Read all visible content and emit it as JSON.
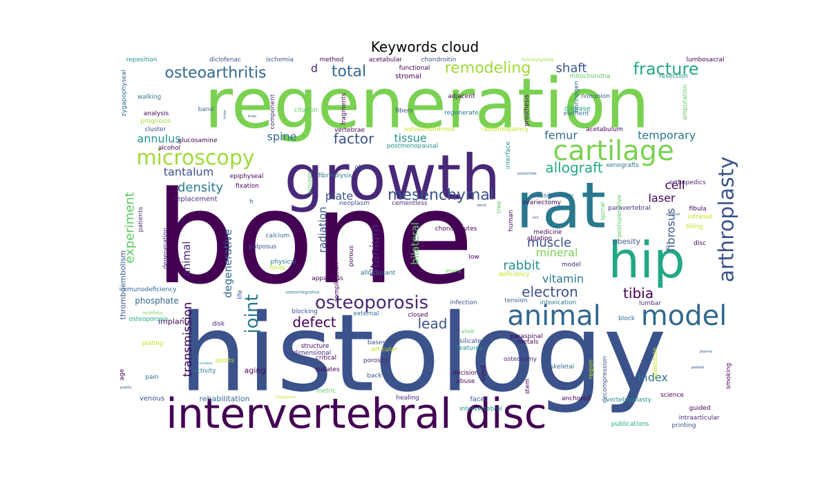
{
  "chart_data": {
    "type": "wordcloud",
    "title": "Keywords cloud",
    "background": "#ffffff",
    "colormap": "viridis",
    "words": [
      {
        "text": "bone",
        "weight": 100,
        "color": "#440154"
      },
      {
        "text": "histology",
        "weight": 95,
        "color": "#3b528b"
      },
      {
        "text": "regeneration",
        "weight": 90,
        "color": "#7ad151"
      },
      {
        "text": "growth",
        "weight": 80,
        "color": "#482878"
      },
      {
        "text": "rat",
        "weight": 72,
        "color": "#2a788e"
      },
      {
        "text": "hip",
        "weight": 60,
        "color": "#22a884"
      },
      {
        "text": "intervertebral disc",
        "weight": 58,
        "color": "#440154"
      },
      {
        "text": "cartilage",
        "weight": 35,
        "color": "#7ad151"
      },
      {
        "text": "animal",
        "weight": 36,
        "color": "#31688e"
      },
      {
        "text": "model",
        "weight": 36,
        "color": "#31688e"
      },
      {
        "text": "arthroplasty",
        "weight": 28,
        "color": "#3b528b"
      },
      {
        "text": "microscopy",
        "weight": 26,
        "color": "#a0da39"
      },
      {
        "text": "osteoporosis",
        "weight": 24,
        "color": "#482878"
      },
      {
        "text": "fracture",
        "weight": 22,
        "color": "#22a884"
      },
      {
        "text": "osteoarthritis",
        "weight": 20,
        "color": "#31688e"
      },
      {
        "text": "remodeling",
        "weight": 20,
        "color": "#a0da39"
      },
      {
        "text": "total",
        "weight": 20,
        "color": "#31688e"
      },
      {
        "text": "joint",
        "weight": 22,
        "color": "#2a788e"
      },
      {
        "text": "mesenchymal",
        "weight": 18,
        "color": "#3b528b"
      },
      {
        "text": "electron",
        "weight": 18,
        "color": "#3b528b"
      },
      {
        "text": "tibia",
        "weight": 18,
        "color": "#440154"
      },
      {
        "text": "defect",
        "weight": 18,
        "color": "#440154"
      },
      {
        "text": "lead",
        "weight": 18,
        "color": "#3b528b"
      },
      {
        "text": "factor",
        "weight": 16,
        "color": "#3b528b"
      },
      {
        "text": "experiment",
        "weight": 16,
        "color": "#5ec962"
      },
      {
        "text": "allograft",
        "weight": 16,
        "color": "#22a884"
      },
      {
        "text": "transmission",
        "weight": 16,
        "color": "#440154"
      },
      {
        "text": "titanium",
        "weight": 16,
        "color": "#482878"
      },
      {
        "text": "fibrosus",
        "weight": 16,
        "color": "#3b528b"
      },
      {
        "text": "muscle",
        "weight": 16,
        "color": "#3b528b"
      },
      {
        "text": "rabbit",
        "weight": 16,
        "color": "#21918c"
      },
      {
        "text": "shaft",
        "weight": 16,
        "color": "#3b528b"
      },
      {
        "text": "density",
        "weight": 15,
        "color": "#2a788e"
      },
      {
        "text": "cell",
        "weight": 15,
        "color": "#440154"
      },
      {
        "text": "index",
        "weight": 14,
        "color": "#2a788e"
      },
      {
        "text": "degenerative",
        "weight": 14,
        "color": "#31688e"
      },
      {
        "text": "radiation",
        "weight": 14,
        "color": "#3b528b"
      },
      {
        "text": "annulus",
        "weight": 14,
        "color": "#21918c"
      },
      {
        "text": "plate",
        "weight": 14,
        "color": "#3b528b"
      },
      {
        "text": "tissue",
        "weight": 14,
        "color": "#21918c"
      },
      {
        "text": "spine",
        "weight": 14,
        "color": "#31688e"
      },
      {
        "text": "femur",
        "weight": 14,
        "color": "#31688e"
      },
      {
        "text": "temporary",
        "weight": 14,
        "color": "#2a788e"
      },
      {
        "text": "bilateral",
        "weight": 14,
        "color": "#5ec962"
      },
      {
        "text": "tantalum",
        "weight": 13,
        "color": "#3b528b"
      },
      {
        "text": "laser",
        "weight": 13,
        "color": "#440154"
      },
      {
        "text": "vitamin",
        "weight": 13,
        "color": "#2a788e"
      },
      {
        "text": "mineral",
        "weight": 13,
        "color": "#7ad151"
      },
      {
        "text": "d",
        "weight": 13,
        "color": "#482878"
      },
      {
        "text": "animal",
        "weight": 12,
        "color": "#482878"
      },
      {
        "text": "phosphate",
        "weight": 9,
        "color": "#31688e"
      },
      {
        "text": "rehabilitation",
        "weight": 9,
        "color": "#31688e"
      },
      {
        "text": "implant",
        "weight": 9,
        "color": "#440154"
      },
      {
        "text": "aging",
        "weight": 9,
        "color": "#440154"
      },
      {
        "text": "obesity",
        "weight": 9,
        "color": "#3b528b"
      },
      {
        "text": "replacement",
        "weight": 8,
        "color": "#482878"
      },
      {
        "text": "thromboembolism",
        "weight": 8,
        "color": "#3b528b"
      },
      {
        "text": "venous",
        "weight": 8,
        "color": "#3b528b"
      },
      {
        "text": "facet",
        "weight": 8,
        "color": "#3b528b"
      },
      {
        "text": "stromal",
        "weight": 8,
        "color": "#440154"
      },
      {
        "text": "disease",
        "weight": 8,
        "color": "#22a884"
      },
      {
        "text": "ischemia",
        "weight": 6,
        "color": "#3b528b"
      },
      {
        "text": "diclofenac",
        "weight": 6,
        "color": "#3b528b"
      },
      {
        "text": "method",
        "weight": 6,
        "color": "#440154"
      },
      {
        "text": "acetabular",
        "weight": 6,
        "color": "#440154"
      },
      {
        "text": "chondroitin",
        "weight": 6,
        "color": "#3b528b"
      },
      {
        "text": "hydroxylapatite",
        "weight": 4,
        "color": "#a0da39"
      },
      {
        "text": "lumbosacral",
        "weight": 6,
        "color": "#440154"
      },
      {
        "text": "reposition",
        "weight": 6,
        "color": "#21918c"
      },
      {
        "text": "zygapophyseal",
        "weight": 6,
        "color": "#31688e"
      },
      {
        "text": "functional",
        "weight": 6,
        "color": "#440154"
      },
      {
        "text": "mitochondria",
        "weight": 6,
        "color": "#5ec962"
      },
      {
        "text": "resection",
        "weight": 6,
        "color": "#21918c"
      },
      {
        "text": "walking",
        "weight": 6,
        "color": "#2a788e"
      },
      {
        "text": "adjacent",
        "weight": 6,
        "color": "#440154"
      },
      {
        "text": "nonunion",
        "weight": 6,
        "color": "#3b528b"
      },
      {
        "text": "fibrinogen",
        "weight": 6,
        "color": "#31688e"
      },
      {
        "text": "amputation",
        "weight": 6,
        "color": "#5ec962"
      },
      {
        "text": "analysis",
        "weight": 6,
        "color": "#440154"
      },
      {
        "text": "band",
        "weight": 6,
        "color": "#31688e"
      },
      {
        "text": "citation",
        "weight": 6,
        "color": "#5ec962"
      },
      {
        "text": "fragments",
        "weight": 6,
        "color": "#440154"
      },
      {
        "text": "fibers",
        "weight": 6,
        "color": "#3b528b"
      },
      {
        "text": "regenerate",
        "weight": 6,
        "color": "#2a788e"
      },
      {
        "text": "element",
        "weight": 6,
        "color": "#31688e"
      },
      {
        "text": "prognosis",
        "weight": 6,
        "color": "#a0da39"
      },
      {
        "text": "component",
        "weight": 6,
        "color": "#482878"
      },
      {
        "text": "prosthesis",
        "weight": 6,
        "color": "#440154"
      },
      {
        "text": "cluster",
        "weight": 6,
        "color": "#3b528b"
      },
      {
        "text": "vertebrae",
        "weight": 6,
        "color": "#440154"
      },
      {
        "text": "osteochondrosis",
        "weight": 6,
        "color": "#c8e020"
      },
      {
        "text": "radiofrequency",
        "weight": 6,
        "color": "#c8e020"
      },
      {
        "text": "acetabulum",
        "weight": 6,
        "color": "#440154"
      },
      {
        "text": "glucosamine",
        "weight": 6,
        "color": "#440154"
      },
      {
        "text": "alcohol",
        "weight": 6,
        "color": "#440154"
      },
      {
        "text": "postmenopausal",
        "weight": 6,
        "color": "#21918c"
      },
      {
        "text": "interface",
        "weight": 6,
        "color": "#21918c"
      },
      {
        "text": "xenografts",
        "weight": 6,
        "color": "#2a788e"
      },
      {
        "text": "orthopedics",
        "weight": 6,
        "color": "#482878"
      },
      {
        "text": "epiphyseal",
        "weight": 6,
        "color": "#440154"
      },
      {
        "text": "fixation",
        "weight": 6,
        "color": "#440154"
      },
      {
        "text": "viruses",
        "weight": 6,
        "color": "#5ec962"
      },
      {
        "text": "fibrinolysis",
        "weight": 6,
        "color": "#2a788e"
      },
      {
        "text": "glass",
        "weight": 6,
        "color": "#3b528b"
      },
      {
        "text": "h",
        "weight": 6,
        "color": "#3b528b"
      },
      {
        "text": "neoplasm",
        "weight": 6,
        "color": "#3b528b"
      },
      {
        "text": "cementless",
        "weight": 6,
        "color": "#482878"
      },
      {
        "text": "densitometry",
        "weight": 6,
        "color": "#31688e"
      },
      {
        "text": "ovariectomy",
        "weight": 6,
        "color": "#440154"
      },
      {
        "text": "spinal",
        "weight": 6,
        "color": "#5ec962"
      },
      {
        "text": "paravertebral",
        "weight": 6,
        "color": "#482878"
      },
      {
        "text": "fibula",
        "weight": 6,
        "color": "#440154"
      },
      {
        "text": "infrared",
        "weight": 6,
        "color": "#c8e020"
      },
      {
        "text": "filling",
        "weight": 6,
        "color": "#c8e020"
      },
      {
        "text": "patients",
        "weight": 6,
        "color": "#482878"
      },
      {
        "text": "degeneration",
        "weight": 6,
        "color": "#482878"
      },
      {
        "text": "calcium",
        "weight": 6,
        "color": "#31688e"
      },
      {
        "text": "pulposus",
        "weight": 6,
        "color": "#3b528b"
      },
      {
        "text": "physical",
        "weight": 6,
        "color": "#2a788e"
      },
      {
        "text": "finite",
        "weight": 6,
        "color": "#c8e020"
      },
      {
        "text": "porous",
        "weight": 6,
        "color": "#440154"
      },
      {
        "text": "alloimplant",
        "weight": 6,
        "color": "#31688e"
      },
      {
        "text": "complication",
        "weight": 6,
        "color": "#440154"
      },
      {
        "text": "apparatus",
        "weight": 6,
        "color": "#440154"
      },
      {
        "text": "low",
        "weight": 6,
        "color": "#440154"
      },
      {
        "text": "chondrocytes",
        "weight": 6,
        "color": "#440154"
      },
      {
        "text": "tree",
        "weight": 6,
        "color": "#5ec962"
      },
      {
        "text": "human",
        "weight": 6,
        "color": "#440154"
      },
      {
        "text": "postoperative",
        "weight": 6,
        "color": "#5ec962"
      },
      {
        "text": "medicine",
        "weight": 6,
        "color": "#440154"
      },
      {
        "text": "ablation",
        "weight": 6,
        "color": "#440154"
      },
      {
        "text": "disc",
        "weight": 6,
        "color": "#440154"
      },
      {
        "text": "model",
        "weight": 6,
        "color": "#482878"
      },
      {
        "text": "deficiency",
        "weight": 6,
        "color": "#c8e020"
      },
      {
        "text": "atrophy",
        "weight": 6,
        "color": "#5ec962"
      },
      {
        "text": "life",
        "weight": 4,
        "color": "#3b528b"
      },
      {
        "text": "immunodeficiency",
        "weight": 6,
        "color": "#31688e"
      },
      {
        "text": "multifidus",
        "weight": 6,
        "color": "#7ad151"
      },
      {
        "text": "osteointegrative",
        "weight": 4,
        "color": "#2a788e"
      },
      {
        "text": "infection",
        "weight": 4,
        "color": "#3b528b"
      },
      {
        "text": "tension",
        "weight": 6,
        "color": "#31688e"
      },
      {
        "text": "intoxication",
        "weight": 6,
        "color": "#2a788e"
      },
      {
        "text": "lumbar",
        "weight": 6,
        "color": "#482878"
      },
      {
        "text": "osteoporosis",
        "weight": 6,
        "color": "#22a884"
      },
      {
        "text": "disk",
        "weight": 6,
        "color": "#482878"
      },
      {
        "text": "blocking",
        "weight": 6,
        "color": "#3b528b"
      },
      {
        "text": "external",
        "weight": 6,
        "color": "#31688e"
      },
      {
        "text": "closed",
        "weight": 6,
        "color": "#440154"
      },
      {
        "text": "block",
        "weight": 6,
        "color": "#31688e"
      },
      {
        "text": "vivo",
        "weight": 6,
        "color": "#5ec962"
      },
      {
        "text": "paraspinal",
        "weight": 6,
        "color": "#440154"
      },
      {
        "text": "metals",
        "weight": 6,
        "color": "#440154"
      },
      {
        "text": "silicate",
        "weight": 6,
        "color": "#3b528b"
      },
      {
        "text": "bases",
        "weight": 6,
        "color": "#3b528b"
      },
      {
        "text": "structure",
        "weight": 6,
        "color": "#440154"
      },
      {
        "text": "dimensional",
        "weight": 6,
        "color": "#482878"
      },
      {
        "text": "articular",
        "weight": 6,
        "color": "#c8e020"
      },
      {
        "text": "features",
        "weight": 6,
        "color": "#21918c"
      },
      {
        "text": "critical",
        "weight": 6,
        "color": "#440154"
      },
      {
        "text": "sulfates",
        "weight": 6,
        "color": "#440154"
      },
      {
        "text": "plating",
        "weight": 6,
        "color": "#c8e020"
      },
      {
        "text": "sports",
        "weight": 6,
        "color": "#c8e020"
      },
      {
        "text": "porosity",
        "weight": 6,
        "color": "#482878"
      },
      {
        "text": "osteotomy",
        "weight": 6,
        "color": "#482878"
      },
      {
        "text": "region",
        "weight": 6,
        "color": "#c8e020"
      },
      {
        "text": "decompression",
        "weight": 6,
        "color": "#3b528b"
      },
      {
        "text": "substitute",
        "weight": 6,
        "color": "#c8e020"
      },
      {
        "text": "age",
        "weight": 6,
        "color": "#440154"
      },
      {
        "text": "activity",
        "weight": 6,
        "color": "#2a788e"
      },
      {
        "text": "pain",
        "weight": 6,
        "color": "#31688e"
      },
      {
        "text": "back",
        "weight": 6,
        "color": "#3b528b"
      },
      {
        "text": "decision",
        "weight": 6,
        "color": "#440154"
      },
      {
        "text": "abuse",
        "weight": 6,
        "color": "#440154"
      },
      {
        "text": "sized",
        "weight": 6,
        "color": "#440154"
      },
      {
        "text": "stem",
        "weight": 6,
        "color": "#440154"
      },
      {
        "text": "skeletal",
        "weight": 6,
        "color": "#31688e"
      },
      {
        "text": "metric",
        "weight": 6,
        "color": "#5ec962"
      },
      {
        "text": "healing",
        "weight": 6,
        "color": "#482878"
      },
      {
        "text": "intervertebral",
        "weight": 6,
        "color": "#21918c"
      },
      {
        "text": "anchored",
        "weight": 6,
        "color": "#440154"
      },
      {
        "text": "vertebroplasty",
        "weight": 6,
        "color": "#21918c"
      },
      {
        "text": "science",
        "weight": 6,
        "color": "#440154"
      },
      {
        "text": "guided",
        "weight": 6,
        "color": "#440154"
      },
      {
        "text": "smoking",
        "weight": 6,
        "color": "#440154"
      },
      {
        "text": "publications",
        "weight": 6,
        "color": "#22a884"
      },
      {
        "text": "intraarticular",
        "weight": 6,
        "color": "#482878"
      },
      {
        "text": "printing",
        "weight": 6,
        "color": "#3b528b"
      },
      {
        "text": "nucleus",
        "weight": 6,
        "color": "#21918c"
      },
      {
        "text": "quality",
        "weight": 4,
        "color": "#3b528b"
      },
      {
        "text": "platelet",
        "weight": 4,
        "color": "#3b528b"
      },
      {
        "text": "plasma",
        "weight": 4,
        "color": "#3b528b"
      },
      {
        "text": "artificial",
        "weight": 4,
        "color": "#3b528b"
      },
      {
        "text": "rich",
        "weight": 4,
        "color": "#3b528b"
      },
      {
        "text": "polylactide",
        "weight": 4,
        "color": "#3b528b"
      },
      {
        "text": "bend",
        "weight": 4,
        "color": "#3b528b"
      },
      {
        "text": "limbs",
        "weight": 4,
        "color": "#3b528b"
      },
      {
        "text": "knee",
        "weight": 4,
        "color": "#3b528b"
      },
      {
        "text": "tricalcium",
        "weight": 4,
        "color": "#c8e020"
      },
      {
        "text": "m",
        "weight": 4,
        "color": "#3b528b"
      }
    ]
  }
}
